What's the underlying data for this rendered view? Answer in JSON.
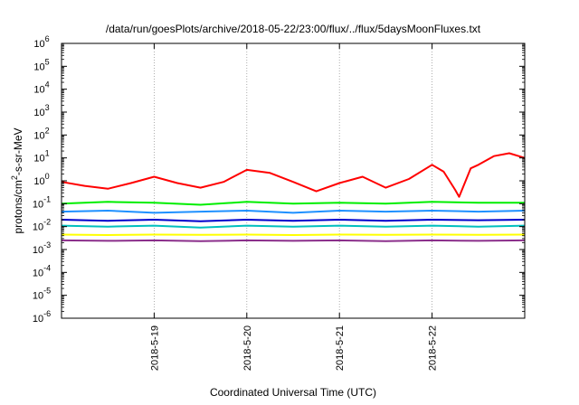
{
  "chart_data": {
    "type": "line",
    "title": "/data/run/goesPlots/archive/2018-05-22/23:00/flux/../flux/5daysMoonFluxes.txt",
    "xlabel": "Coordinated Universal Time (UTC)",
    "ylabel": "protons/cm2-s-sr-MeV",
    "ylabel_parts": {
      "main": "protons/cm",
      "sup": "2",
      "rest": "-s-sr-MeV"
    },
    "yscale": "log",
    "ylim_exponents": [
      -6,
      6
    ],
    "ytick_labels": [
      {
        "base": "10",
        "exp": "-6"
      },
      {
        "base": "10",
        "exp": "-5"
      },
      {
        "base": "10",
        "exp": "-4"
      },
      {
        "base": "10",
        "exp": "-3"
      },
      {
        "base": "10",
        "exp": "-2"
      },
      {
        "base": "10",
        "exp": "-1"
      },
      {
        "base": "10",
        "exp": "0"
      },
      {
        "base": "10",
        "exp": "1"
      },
      {
        "base": "10",
        "exp": "2"
      },
      {
        "base": "10",
        "exp": "3"
      },
      {
        "base": "10",
        "exp": "4"
      },
      {
        "base": "10",
        "exp": "5"
      },
      {
        "base": "10",
        "exp": "6"
      }
    ],
    "xlim_days": [
      "2018-05-18 00:00",
      "2018-05-23 00:00"
    ],
    "xtick_labels": [
      "2018-5-19",
      "2018-5-20",
      "2018-5-21",
      "2018-5-22"
    ],
    "grid": true,
    "series": [
      {
        "color": "#ff0000",
        "x": [
          "2018-05-18 00:00",
          "2018-05-18 06:00",
          "2018-05-18 12:00",
          "2018-05-18 18:00",
          "2018-05-19 00:00",
          "2018-05-19 06:00",
          "2018-05-19 12:00",
          "2018-05-19 18:00",
          "2018-05-20 00:00",
          "2018-05-20 06:00",
          "2018-05-20 12:00",
          "2018-05-20 18:00",
          "2018-05-21 00:00",
          "2018-05-21 06:00",
          "2018-05-21 12:00",
          "2018-05-21 18:00",
          "2018-05-22 00:00",
          "2018-05-22 03:00",
          "2018-05-22 06:00",
          "2018-05-22 07:00",
          "2018-05-22 10:00",
          "2018-05-22 12:00",
          "2018-05-22 16:00",
          "2018-05-22 20:00",
          "2018-05-23 00:00"
        ],
        "values": [
          0.9,
          0.6,
          0.45,
          0.8,
          1.5,
          0.8,
          0.5,
          0.9,
          3.0,
          2.2,
          0.9,
          0.35,
          0.8,
          1.5,
          0.5,
          1.2,
          5.0,
          2.5,
          0.4,
          0.2,
          3.5,
          5.0,
          12.0,
          16.0,
          10.0
        ]
      },
      {
        "color": "#00ee00",
        "x": [
          "2018-05-18 00:00",
          "2018-05-18 12:00",
          "2018-05-19 00:00",
          "2018-05-19 12:00",
          "2018-05-20 00:00",
          "2018-05-20 12:00",
          "2018-05-21 00:00",
          "2018-05-21 12:00",
          "2018-05-22 00:00",
          "2018-05-22 12:00",
          "2018-05-23 00:00"
        ],
        "values": [
          0.1,
          0.12,
          0.11,
          0.09,
          0.12,
          0.1,
          0.11,
          0.1,
          0.12,
          0.11,
          0.11
        ]
      },
      {
        "color": "#1e90ff",
        "x": [
          "2018-05-18 00:00",
          "2018-05-18 12:00",
          "2018-05-19 00:00",
          "2018-05-19 12:00",
          "2018-05-20 00:00",
          "2018-05-20 12:00",
          "2018-05-21 00:00",
          "2018-05-21 12:00",
          "2018-05-22 00:00",
          "2018-05-22 12:00",
          "2018-05-23 00:00"
        ],
        "values": [
          0.045,
          0.05,
          0.04,
          0.045,
          0.05,
          0.04,
          0.05,
          0.045,
          0.05,
          0.045,
          0.05
        ]
      },
      {
        "color": "#0000cc",
        "x": [
          "2018-05-18 00:00",
          "2018-05-18 12:00",
          "2018-05-19 00:00",
          "2018-05-19 12:00",
          "2018-05-20 00:00",
          "2018-05-20 12:00",
          "2018-05-21 00:00",
          "2018-05-21 12:00",
          "2018-05-22 00:00",
          "2018-05-22 12:00",
          "2018-05-23 00:00"
        ],
        "values": [
          0.02,
          0.018,
          0.02,
          0.017,
          0.02,
          0.018,
          0.02,
          0.018,
          0.02,
          0.019,
          0.02
        ]
      },
      {
        "color": "#00bfbf",
        "x": [
          "2018-05-18 00:00",
          "2018-05-18 12:00",
          "2018-05-19 00:00",
          "2018-05-19 12:00",
          "2018-05-20 00:00",
          "2018-05-20 12:00",
          "2018-05-21 00:00",
          "2018-05-21 12:00",
          "2018-05-22 00:00",
          "2018-05-22 12:00",
          "2018-05-23 00:00"
        ],
        "values": [
          0.011,
          0.01,
          0.011,
          0.009,
          0.011,
          0.01,
          0.011,
          0.01,
          0.011,
          0.01,
          0.011
        ]
      },
      {
        "color": "#ffff00",
        "x": [
          "2018-05-18 00:00",
          "2018-05-18 12:00",
          "2018-05-19 00:00",
          "2018-05-19 12:00",
          "2018-05-20 00:00",
          "2018-05-20 12:00",
          "2018-05-21 00:00",
          "2018-05-21 12:00",
          "2018-05-22 00:00",
          "2018-05-22 12:00",
          "2018-05-23 00:00"
        ],
        "values": [
          0.0045,
          0.0043,
          0.0045,
          0.0044,
          0.0045,
          0.0043,
          0.0045,
          0.0044,
          0.0045,
          0.0044,
          0.0045
        ]
      },
      {
        "color": "#8b2f8b",
        "x": [
          "2018-05-18 00:00",
          "2018-05-18 12:00",
          "2018-05-19 00:00",
          "2018-05-19 12:00",
          "2018-05-20 00:00",
          "2018-05-20 12:00",
          "2018-05-21 00:00",
          "2018-05-21 12:00",
          "2018-05-22 00:00",
          "2018-05-22 12:00",
          "2018-05-23 00:00"
        ],
        "values": [
          0.0025,
          0.0024,
          0.0025,
          0.0023,
          0.0025,
          0.0024,
          0.0025,
          0.0023,
          0.0025,
          0.0024,
          0.0025
        ]
      }
    ]
  }
}
